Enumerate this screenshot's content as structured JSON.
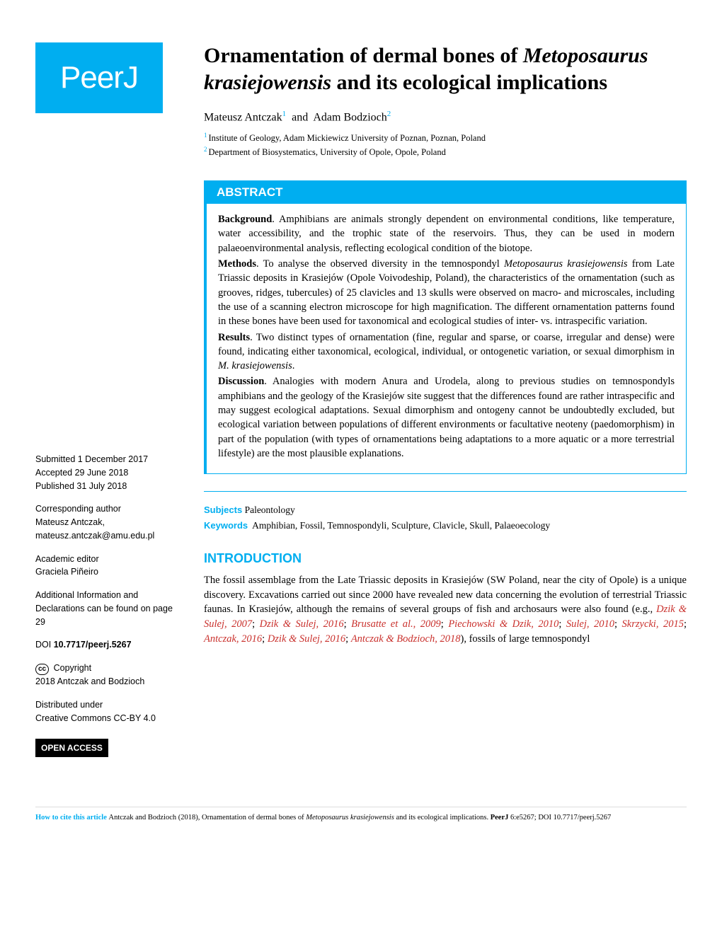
{
  "logo": "PeerJ",
  "title_part1": "Ornamentation of dermal bones of ",
  "title_italic": "Metoposaurus krasiejowensis",
  "title_part2": " and its ecological implications",
  "authors": {
    "a1_name": "Mateusz Antczak",
    "a1_sup": "1",
    "a2_name": "Adam Bodzioch",
    "a2_sup": "2"
  },
  "affiliations": {
    "aff1_sup": "1",
    "aff1": "Institute of Geology, Adam Mickiewicz University of Poznan, Poznan, Poland",
    "aff2_sup": "2",
    "aff2": "Department of Biosystematics, University of Opole, Opole, Poland"
  },
  "abstract": {
    "header": "ABSTRACT",
    "bg_label": "Background",
    "bg_text": ". Amphibians are animals strongly dependent on environmental conditions, like temperature, water accessibility, and the trophic state of the reservoirs. Thus, they can be used in modern palaeoenvironmental analysis, reflecting ecological condition of the biotope.",
    "methods_label": "Methods",
    "methods_text_pre": ". To analyse the observed diversity in the temnospondyl ",
    "methods_italic": "Metoposaurus krasiejowensis",
    "methods_text_post": " from Late Triassic deposits in Krasiejów (Opole Voivodeship, Poland), the characteristics of the ornamentation (such as grooves, ridges, tubercules) of 25 clavicles and 13 skulls were observed on macro- and microscales, including the use of a scanning electron microscope for high magnification. The different ornamentation patterns found in these bones have been used for taxonomical and ecological studies of inter- vs. intraspecific variation.",
    "results_label": "Results",
    "results_text_pre": ". Two distinct types of ornamentation (fine, regular and sparse, or coarse, irregular and dense) were found, indicating either taxonomical, ecological, individual, or ontogenetic variation, or sexual dimorphism in ",
    "results_italic": "M. krasiejowensis",
    "results_text_post": ".",
    "disc_label": "Discussion",
    "disc_text": ". Analogies with modern Anura and Urodela, along to previous studies on temnospondyls amphibians and the geology of the Krasiejów site suggest that the differences found are rather intraspecific and may suggest ecological adaptations. Sexual dimorphism and ontogeny cannot be undoubtedly excluded, but ecological variation between populations of different environments or facultative neoteny (paedomorphism) in part of the population (with types of ornamentations being adaptations to a more aquatic or a more terrestrial lifestyle) are the most plausible explanations."
  },
  "subjects": {
    "label": "Subjects",
    "value": "Paleontology"
  },
  "keywords": {
    "label": "Keywords",
    "value": "Amphibian, Fossil, Temnospondyli, Sculpture, Clavicle, Skull, Palaeoecology"
  },
  "intro": {
    "heading": "INTRODUCTION",
    "t1": "The fossil assemblage from the Late Triassic deposits in Krasiejów (SW Poland, near the city of Opole) is a unique discovery. Excavations carried out since 2000 have revealed new data concerning the evolution of terrestrial Triassic faunas. In Krasiejów, although the remains of several groups of fish and archosaurs were also found (e.g., ",
    "c1": "Dzik & Sulej, 2007",
    "sep1": "; ",
    "c2": "Dzik & Sulej, 2016",
    "sep2": "; ",
    "c3": "Brusatte et al., 2009",
    "sep3": "; ",
    "c4": "Piechowski & Dzik, 2010",
    "sep4": "; ",
    "c5": "Sulej, 2010",
    "sep5": "; ",
    "c6": "Skrzycki, 2015",
    "sep6": "; ",
    "c7": "Antczak, 2016",
    "sep7": "; ",
    "c8": "Dzik & Sulej, 2016",
    "sep8": "; ",
    "c9": "Antczak & Bodzioch, 2018",
    "t2": "), fossils of large temnospondyl"
  },
  "sidebar": {
    "submitted_lbl": "Submitted",
    "submitted_val": " 1 December 2017",
    "accepted_lbl": "Accepted",
    "accepted_val": " 29 June 2018",
    "published_lbl": "Published",
    "published_val": " 31 July 2018",
    "corr_lbl": "Corresponding author",
    "corr_name": "Mateusz Antczak,",
    "corr_email": "mateusz.antczak@amu.edu.pl",
    "editor_lbl": "Academic editor",
    "editor_name": "Graciela Piñeiro",
    "addl": "Additional Information and Declarations can be found on page 29",
    "doi_lbl": "DOI ",
    "doi_val": "10.7717/peerj.5267",
    "copyright_lbl": " Copyright",
    "copyright_val": "2018 Antczak and Bodzioch",
    "dist_lbl": "Distributed under",
    "dist_val": "Creative Commons CC-BY 4.0",
    "open_access": "OPEN ACCESS"
  },
  "footer": {
    "cite_lbl": "How to cite this article ",
    "text1": "Antczak and Bodzioch (2018), Ornamentation of dermal bones of ",
    "italic1": "Metoposaurus krasiejowensis",
    "text2": " and its ecological implications. ",
    "bold1": "PeerJ",
    "text3": " 6:e5267; DOI 10.7717/peerj.5267"
  },
  "colors": {
    "brand": "#00aef0",
    "cite": "#c9302c",
    "black": "#000000",
    "white": "#ffffff"
  }
}
